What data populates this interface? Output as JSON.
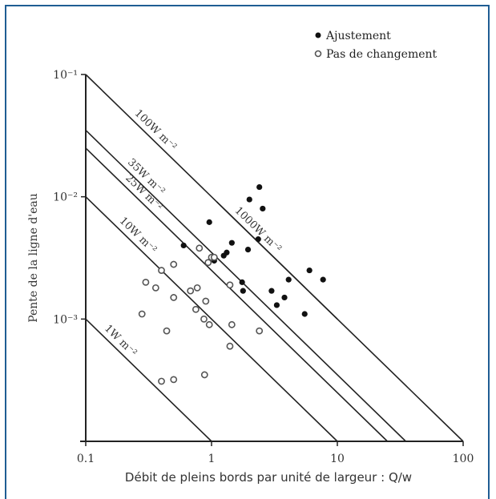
{
  "chart_data": {
    "type": "scatter",
    "title": "",
    "xlabel": "Débit de pleins bords par unité de largeur : Q/w",
    "ylabel": "Pente de la ligne d'eau",
    "xscale": "log",
    "yscale": "log",
    "xlim": [
      0.1,
      100
    ],
    "ylim": [
      0.0001,
      0.1
    ],
    "x_ticks": [
      {
        "value": 0.1,
        "label": "0.1"
      },
      {
        "value": 1,
        "label": "1"
      },
      {
        "value": 10,
        "label": "10"
      },
      {
        "value": 100,
        "label": "100"
      }
    ],
    "y_ticks": [
      {
        "value": 0.001,
        "label": "10⁻³"
      },
      {
        "value": 0.01,
        "label": "10⁻²"
      },
      {
        "value": 0.1,
        "label": "10⁻¹"
      }
    ],
    "legend": [
      {
        "name": "Ajustement",
        "marker": "filled"
      },
      {
        "name": "Pas de changement",
        "marker": "open"
      }
    ],
    "legend_position": "top-right",
    "power_lines": [
      {
        "label": "1W m⁻²",
        "x1": 0.1,
        "x2": 1
      },
      {
        "label": "10W m⁻²",
        "x1": 0.1,
        "x2": 10
      },
      {
        "label": "25W m⁻²",
        "x1": 0.1,
        "x2": 25
      },
      {
        "label": "35W m⁻²",
        "x1": 0.1,
        "x2": 35
      },
      {
        "label": "100W m⁻²",
        "x1": 0.1,
        "x2": 100
      },
      {
        "label": "1000W m⁻²",
        "x1": 1.1,
        "x2": 100
      }
    ],
    "series": [
      {
        "name": "Ajustement",
        "points": [
          [
            0.6,
            0.004
          ],
          [
            0.96,
            0.0062
          ],
          [
            1.25,
            0.0033
          ],
          [
            1.32,
            0.0035
          ],
          [
            1.45,
            0.0042
          ],
          [
            1.05,
            0.003
          ],
          [
            1.75,
            0.002
          ],
          [
            1.78,
            0.0017
          ],
          [
            1.95,
            0.0037
          ],
          [
            2.0,
            0.0095
          ],
          [
            2.35,
            0.0045
          ],
          [
            2.4,
            0.012
          ],
          [
            2.55,
            0.008
          ],
          [
            3.0,
            0.0017
          ],
          [
            3.3,
            0.0013
          ],
          [
            3.8,
            0.0015
          ],
          [
            4.1,
            0.0021
          ],
          [
            5.5,
            0.0011
          ],
          [
            6.0,
            0.0025
          ],
          [
            7.7,
            0.0021
          ]
        ]
      },
      {
        "name": "Pas de changement",
        "points": [
          [
            0.3,
            0.002
          ],
          [
            0.28,
            0.0011
          ],
          [
            0.36,
            0.0018
          ],
          [
            0.4,
            0.0025
          ],
          [
            0.44,
            0.0008
          ],
          [
            0.5,
            0.0015
          ],
          [
            0.5,
            0.0028
          ],
          [
            0.68,
            0.0017
          ],
          [
            0.75,
            0.0012
          ],
          [
            0.77,
            0.0018
          ],
          [
            0.8,
            0.0038
          ],
          [
            0.87,
            0.001
          ],
          [
            0.9,
            0.0014
          ],
          [
            0.94,
            0.0029
          ],
          [
            0.96,
            0.0009
          ],
          [
            1.0,
            0.0032
          ],
          [
            1.05,
            0.0032
          ],
          [
            1.4,
            0.0019
          ],
          [
            1.45,
            0.0009
          ],
          [
            1.4,
            0.0006
          ],
          [
            2.4,
            0.0008
          ],
          [
            0.4,
            0.00031
          ],
          [
            0.5,
            0.00032
          ],
          [
            0.88,
            0.00035
          ]
        ]
      }
    ]
  }
}
